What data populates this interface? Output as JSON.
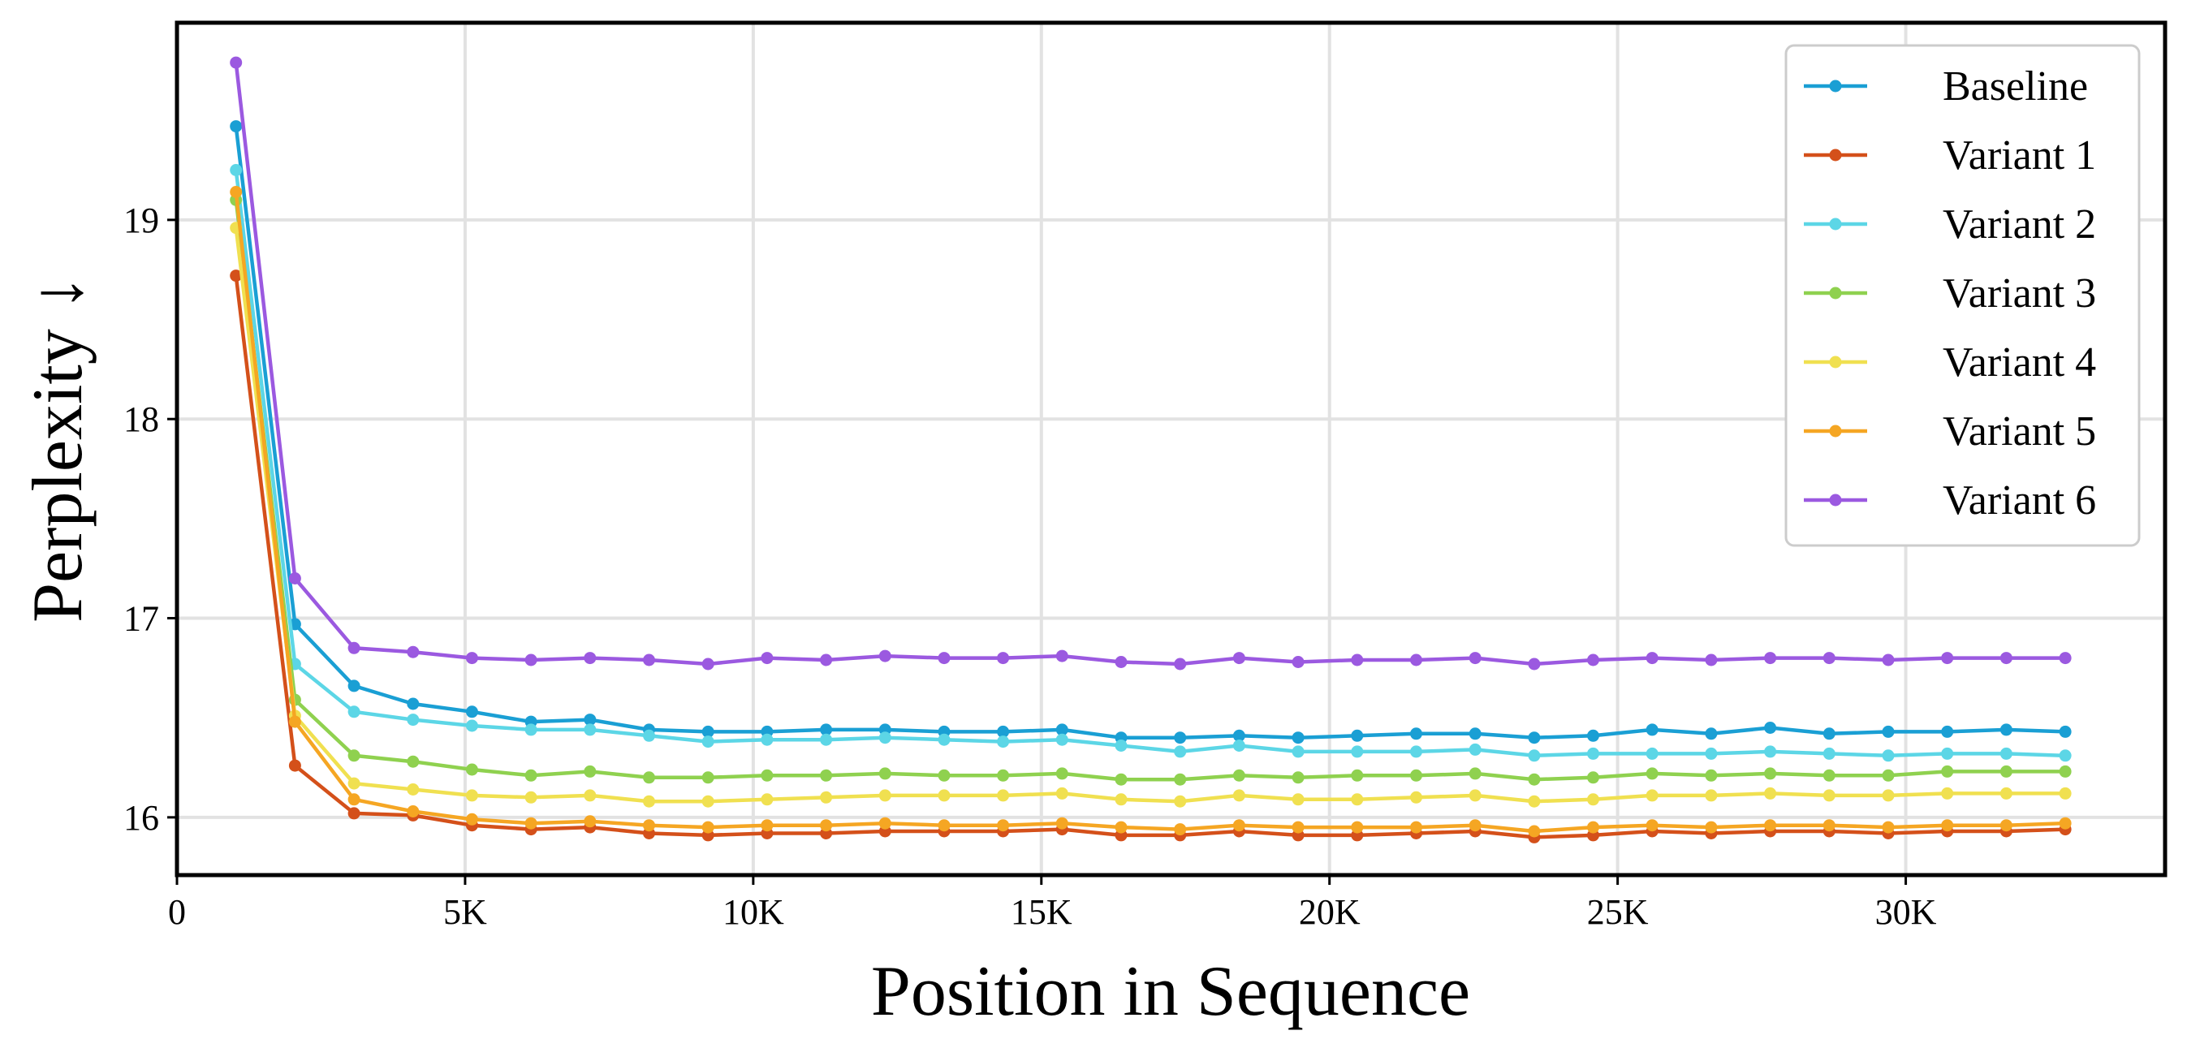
{
  "chart_data": {
    "type": "line",
    "title": "",
    "xlabel": "Position in Sequence",
    "ylabel": "Perplexity ↓",
    "xlim": [
      0,
      34500
    ],
    "ylim": [
      15.71,
      19.99
    ],
    "x_ticks": [
      0,
      5000,
      10000,
      15000,
      20000,
      25000,
      30000
    ],
    "x_tick_labels": [
      "0",
      "5K",
      "10K",
      "15K",
      "20K",
      "25K",
      "30K"
    ],
    "y_ticks": [
      16,
      17,
      18,
      19
    ],
    "y_tick_labels": [
      "16",
      "17",
      "18",
      "19"
    ],
    "grid": true,
    "legend_position": "top-right",
    "x": [
      1024,
      2048,
      3072,
      4096,
      5120,
      6144,
      7168,
      8192,
      9216,
      10240,
      11264,
      12288,
      13312,
      14336,
      15360,
      16384,
      17408,
      18432,
      19456,
      20480,
      21504,
      22528,
      23552,
      24576,
      25600,
      26624,
      27648,
      28672,
      29696,
      30720,
      31744,
      32768
    ],
    "series": [
      {
        "name": "Baseline",
        "color": "#1a9fd4",
        "values": [
          19.47,
          16.97,
          16.66,
          16.57,
          16.53,
          16.48,
          16.49,
          16.44,
          16.43,
          16.43,
          16.44,
          16.44,
          16.43,
          16.43,
          16.44,
          16.4,
          16.4,
          16.41,
          16.4,
          16.41,
          16.42,
          16.42,
          16.4,
          16.41,
          16.44,
          16.42,
          16.45,
          16.42,
          16.43,
          16.43,
          16.44,
          16.43
        ]
      },
      {
        "name": "Variant 1",
        "color": "#d4501a",
        "values": [
          18.72,
          16.26,
          16.02,
          16.01,
          15.96,
          15.94,
          15.95,
          15.92,
          15.91,
          15.92,
          15.92,
          15.93,
          15.93,
          15.93,
          15.94,
          15.91,
          15.91,
          15.93,
          15.91,
          15.91,
          15.92,
          15.93,
          15.9,
          15.91,
          15.93,
          15.92,
          15.93,
          15.93,
          15.92,
          15.93,
          15.93,
          15.94
        ]
      },
      {
        "name": "Variant 2",
        "color": "#5cd6e6",
        "values": [
          19.25,
          16.77,
          16.53,
          16.49,
          16.46,
          16.44,
          16.44,
          16.41,
          16.38,
          16.39,
          16.39,
          16.4,
          16.39,
          16.38,
          16.39,
          16.36,
          16.33,
          16.36,
          16.33,
          16.33,
          16.33,
          16.34,
          16.31,
          16.32,
          16.32,
          16.32,
          16.33,
          16.32,
          16.31,
          16.32,
          16.32,
          16.31
        ]
      },
      {
        "name": "Variant 3",
        "color": "#8fd14f",
        "values": [
          19.1,
          16.59,
          16.31,
          16.28,
          16.24,
          16.21,
          16.23,
          16.2,
          16.2,
          16.21,
          16.21,
          16.22,
          16.21,
          16.21,
          16.22,
          16.19,
          16.19,
          16.21,
          16.2,
          16.21,
          16.21,
          16.22,
          16.19,
          16.2,
          16.22,
          16.21,
          16.22,
          16.21,
          16.21,
          16.23,
          16.23,
          16.23
        ]
      },
      {
        "name": "Variant 4",
        "color": "#f0e050",
        "values": [
          18.96,
          16.51,
          16.17,
          16.14,
          16.11,
          16.1,
          16.11,
          16.08,
          16.08,
          16.09,
          16.1,
          16.11,
          16.11,
          16.11,
          16.12,
          16.09,
          16.08,
          16.11,
          16.09,
          16.09,
          16.1,
          16.11,
          16.08,
          16.09,
          16.11,
          16.11,
          16.12,
          16.11,
          16.11,
          16.12,
          16.12,
          16.12
        ]
      },
      {
        "name": "Variant 5",
        "color": "#f5a623",
        "values": [
          19.14,
          16.48,
          16.09,
          16.03,
          15.99,
          15.97,
          15.98,
          15.96,
          15.95,
          15.96,
          15.96,
          15.97,
          15.96,
          15.96,
          15.97,
          15.95,
          15.94,
          15.96,
          15.95,
          15.95,
          15.95,
          15.96,
          15.93,
          15.95,
          15.96,
          15.95,
          15.96,
          15.96,
          15.95,
          15.96,
          15.96,
          15.97
        ]
      },
      {
        "name": "Variant 6",
        "color": "#9b59e0",
        "values": [
          19.79,
          17.2,
          16.85,
          16.83,
          16.8,
          16.79,
          16.8,
          16.79,
          16.77,
          16.8,
          16.79,
          16.81,
          16.8,
          16.8,
          16.81,
          16.78,
          16.77,
          16.8,
          16.78,
          16.79,
          16.79,
          16.8,
          16.77,
          16.79,
          16.8,
          16.79,
          16.8,
          16.8,
          16.79,
          16.8,
          16.8,
          16.8
        ]
      }
    ]
  }
}
